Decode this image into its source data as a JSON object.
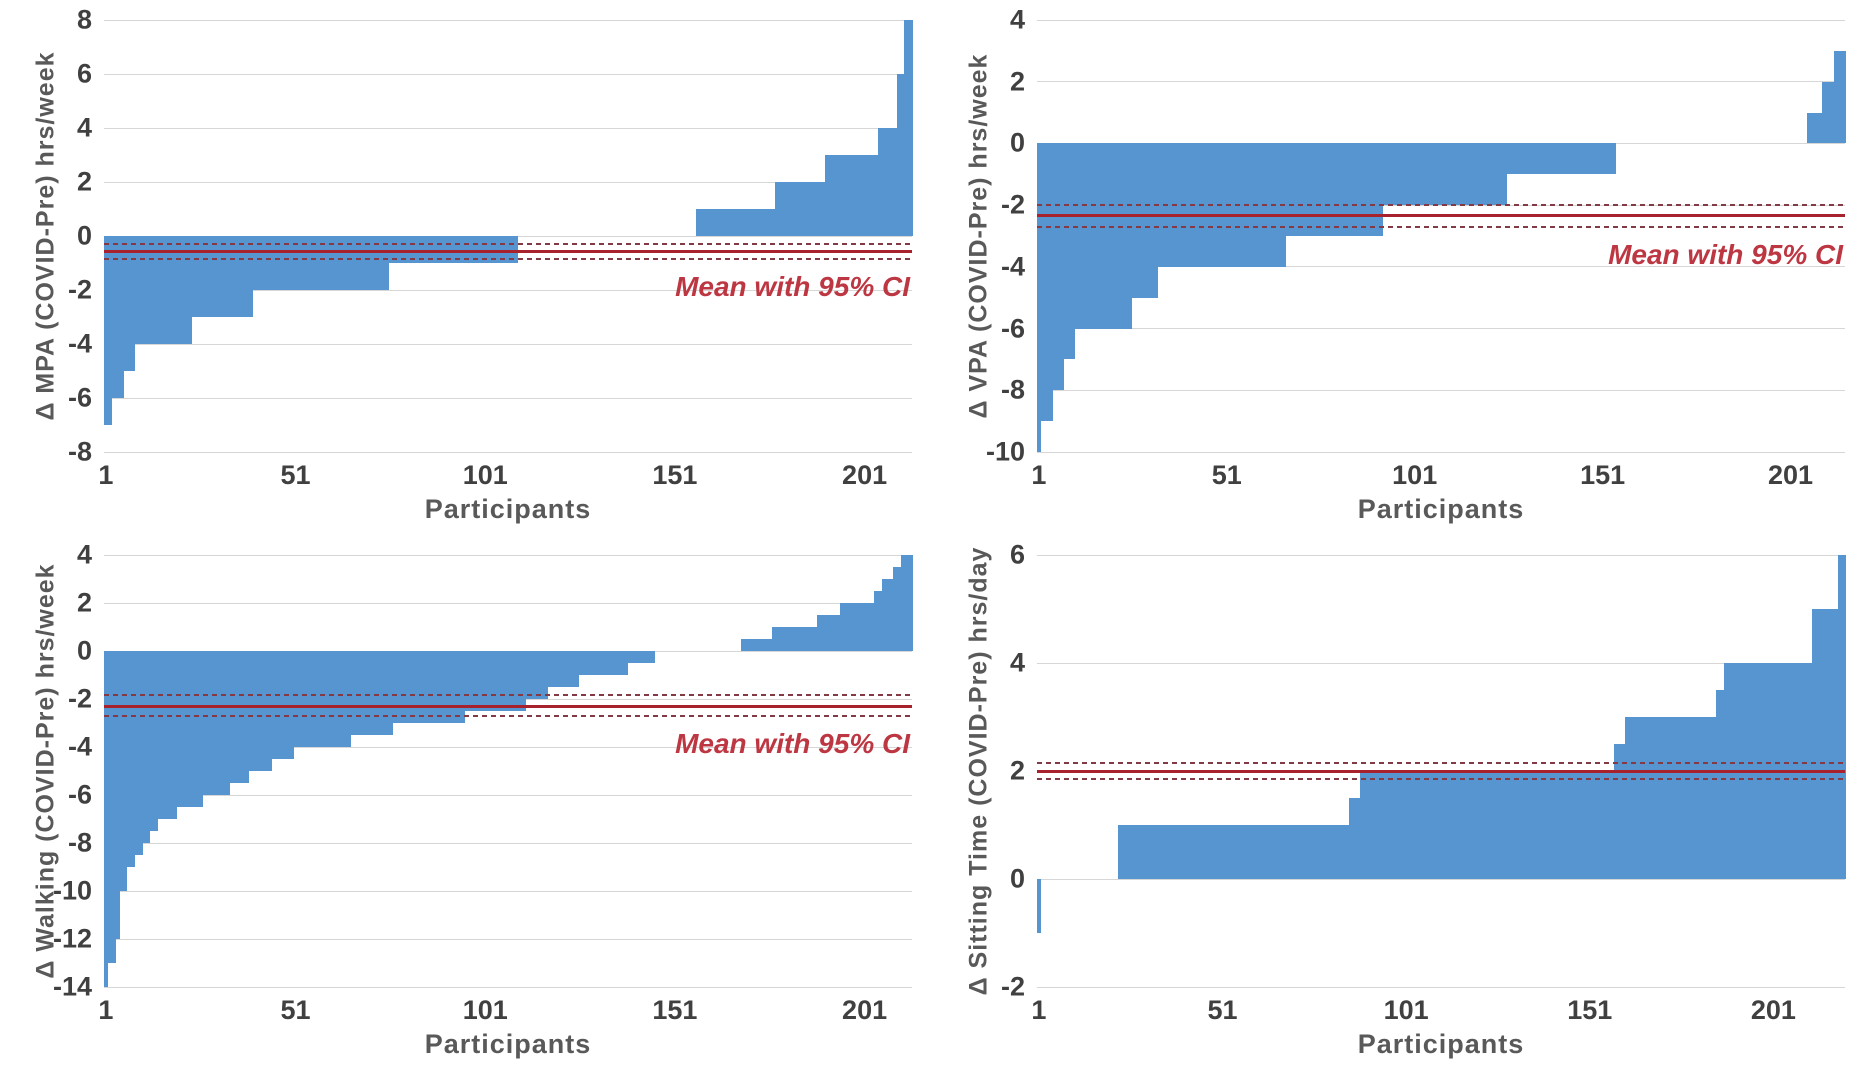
{
  "colors": {
    "bar": "#5695CF",
    "gridline": "#D6D6D6",
    "mean_line": "#A8222E",
    "ci_line": "#833A44",
    "annotation_text": "#BD3743",
    "tick_text": "#404040",
    "axis_title_text": "#595959",
    "background": "#FFFFFF"
  },
  "chart_data": [
    {
      "type": "bar",
      "panel": "top-left",
      "title": "",
      "ylabel": "Δ MPA (COVID-Pre) hrs/week",
      "xlabel": "Participants",
      "ylim": [
        -8,
        8
      ],
      "yticks": [
        8,
        6,
        4,
        2,
        0,
        -2,
        -4,
        -6,
        -8
      ],
      "xticks": [
        1,
        51,
        101,
        151,
        201
      ],
      "n_participants": 213,
      "grid": true,
      "legend_position": "none",
      "annotation": "Mean with 95% CI",
      "mean": -0.57,
      "ci_upper": -0.3,
      "ci_lower": -0.85,
      "segments": [
        {
          "value": -7,
          "count": 2
        },
        {
          "value": -6,
          "count": 3
        },
        {
          "value": -5,
          "count": 3
        },
        {
          "value": -4,
          "count": 15
        },
        {
          "value": -3,
          "count": 16
        },
        {
          "value": -2,
          "count": 36
        },
        {
          "value": -1,
          "count": 34
        },
        {
          "value": 0,
          "count": 47
        },
        {
          "value": 1,
          "count": 21
        },
        {
          "value": 2,
          "count": 13
        },
        {
          "value": 3,
          "count": 14
        },
        {
          "value": 4,
          "count": 5
        },
        {
          "value": 6,
          "count": 2
        },
        {
          "value": 8,
          "count": 2
        }
      ]
    },
    {
      "type": "bar",
      "panel": "top-right",
      "title": "",
      "ylabel": "Δ VPA (COVID-Pre) hrs/week",
      "xlabel": "Participants",
      "ylim": [
        -10,
        4
      ],
      "yticks": [
        4,
        2,
        0,
        -2,
        -4,
        -6,
        -8,
        -10
      ],
      "xticks": [
        1,
        51,
        101,
        151,
        201
      ],
      "n_participants": 215,
      "grid": true,
      "legend_position": "none",
      "annotation": "Mean with 95% CI",
      "mean": -2.35,
      "ci_upper": -2.0,
      "ci_lower": -2.7,
      "segments": [
        {
          "value": -10,
          "count": 1
        },
        {
          "value": -9,
          "count": 3
        },
        {
          "value": -8,
          "count": 3
        },
        {
          "value": -7,
          "count": 3
        },
        {
          "value": -6,
          "count": 15
        },
        {
          "value": -5,
          "count": 7
        },
        {
          "value": -4,
          "count": 34
        },
        {
          "value": -3,
          "count": 26
        },
        {
          "value": -2,
          "count": 33
        },
        {
          "value": -1,
          "count": 29
        },
        {
          "value": 0,
          "count": 51
        },
        {
          "value": 1,
          "count": 4
        },
        {
          "value": 2,
          "count": 3
        },
        {
          "value": 3,
          "count": 3
        }
      ]
    },
    {
      "type": "bar",
      "panel": "bottom-left",
      "title": "",
      "ylabel": "Δ Walking (COVID-Pre) hrs/week",
      "xlabel": "Participants",
      "ylim": [
        -14,
        4
      ],
      "yticks": [
        4,
        2,
        0,
        -2,
        -4,
        -6,
        -8,
        -10,
        -12,
        -14
      ],
      "xticks": [
        1,
        51,
        101,
        151,
        201
      ],
      "n_participants": 213,
      "grid": true,
      "legend_position": "none",
      "annotation": "Mean with 95% CI",
      "mean": -2.3,
      "ci_upper": -1.85,
      "ci_lower": -2.7,
      "segments": [
        {
          "value": -14,
          "count": 1
        },
        {
          "value": -13,
          "count": 2
        },
        {
          "value": -12,
          "count": 1
        },
        {
          "value": -10,
          "count": 2
        },
        {
          "value": -9,
          "count": 2
        },
        {
          "value": -8.5,
          "count": 2
        },
        {
          "value": -8,
          "count": 2
        },
        {
          "value": -7.5,
          "count": 2
        },
        {
          "value": -7,
          "count": 5
        },
        {
          "value": -6.5,
          "count": 7
        },
        {
          "value": -6,
          "count": 7
        },
        {
          "value": -5.5,
          "count": 5
        },
        {
          "value": -5,
          "count": 6
        },
        {
          "value": -4.5,
          "count": 6
        },
        {
          "value": -4,
          "count": 15
        },
        {
          "value": -3.5,
          "count": 11
        },
        {
          "value": -3,
          "count": 19
        },
        {
          "value": -2.5,
          "count": 16
        },
        {
          "value": -2,
          "count": 6
        },
        {
          "value": -1.5,
          "count": 8
        },
        {
          "value": -1,
          "count": 13
        },
        {
          "value": -0.5,
          "count": 7
        },
        {
          "value": 0,
          "count": 23
        },
        {
          "value": 0.5,
          "count": 8
        },
        {
          "value": 1,
          "count": 12
        },
        {
          "value": 1.5,
          "count": 6
        },
        {
          "value": 2,
          "count": 9
        },
        {
          "value": 2.5,
          "count": 2
        },
        {
          "value": 3,
          "count": 3
        },
        {
          "value": 3.5,
          "count": 2
        },
        {
          "value": 4,
          "count": 3
        }
      ]
    },
    {
      "type": "bar",
      "panel": "bottom-right",
      "title": "",
      "ylabel": "Δ Sitting Time (COVID-Pre) hrs/day",
      "xlabel": "Participants",
      "ylim": [
        -2,
        6
      ],
      "yticks": [
        6,
        4,
        2,
        0,
        -2
      ],
      "xticks": [
        1,
        51,
        101,
        151,
        201
      ],
      "n_participants": 220,
      "grid": true,
      "legend_position": "none",
      "annotation": "",
      "mean": 2.0,
      "ci_upper": 2.15,
      "ci_lower": 1.85,
      "segments": [
        {
          "value": -1,
          "count": 1
        },
        {
          "value": 0,
          "count": 21
        },
        {
          "value": 1,
          "count": 63
        },
        {
          "value": 1.5,
          "count": 3
        },
        {
          "value": 2,
          "count": 69
        },
        {
          "value": 2.5,
          "count": 3
        },
        {
          "value": 3,
          "count": 25
        },
        {
          "value": 3.5,
          "count": 2
        },
        {
          "value": 4,
          "count": 24
        },
        {
          "value": 5,
          "count": 7
        },
        {
          "value": 6,
          "count": 2
        }
      ]
    }
  ]
}
